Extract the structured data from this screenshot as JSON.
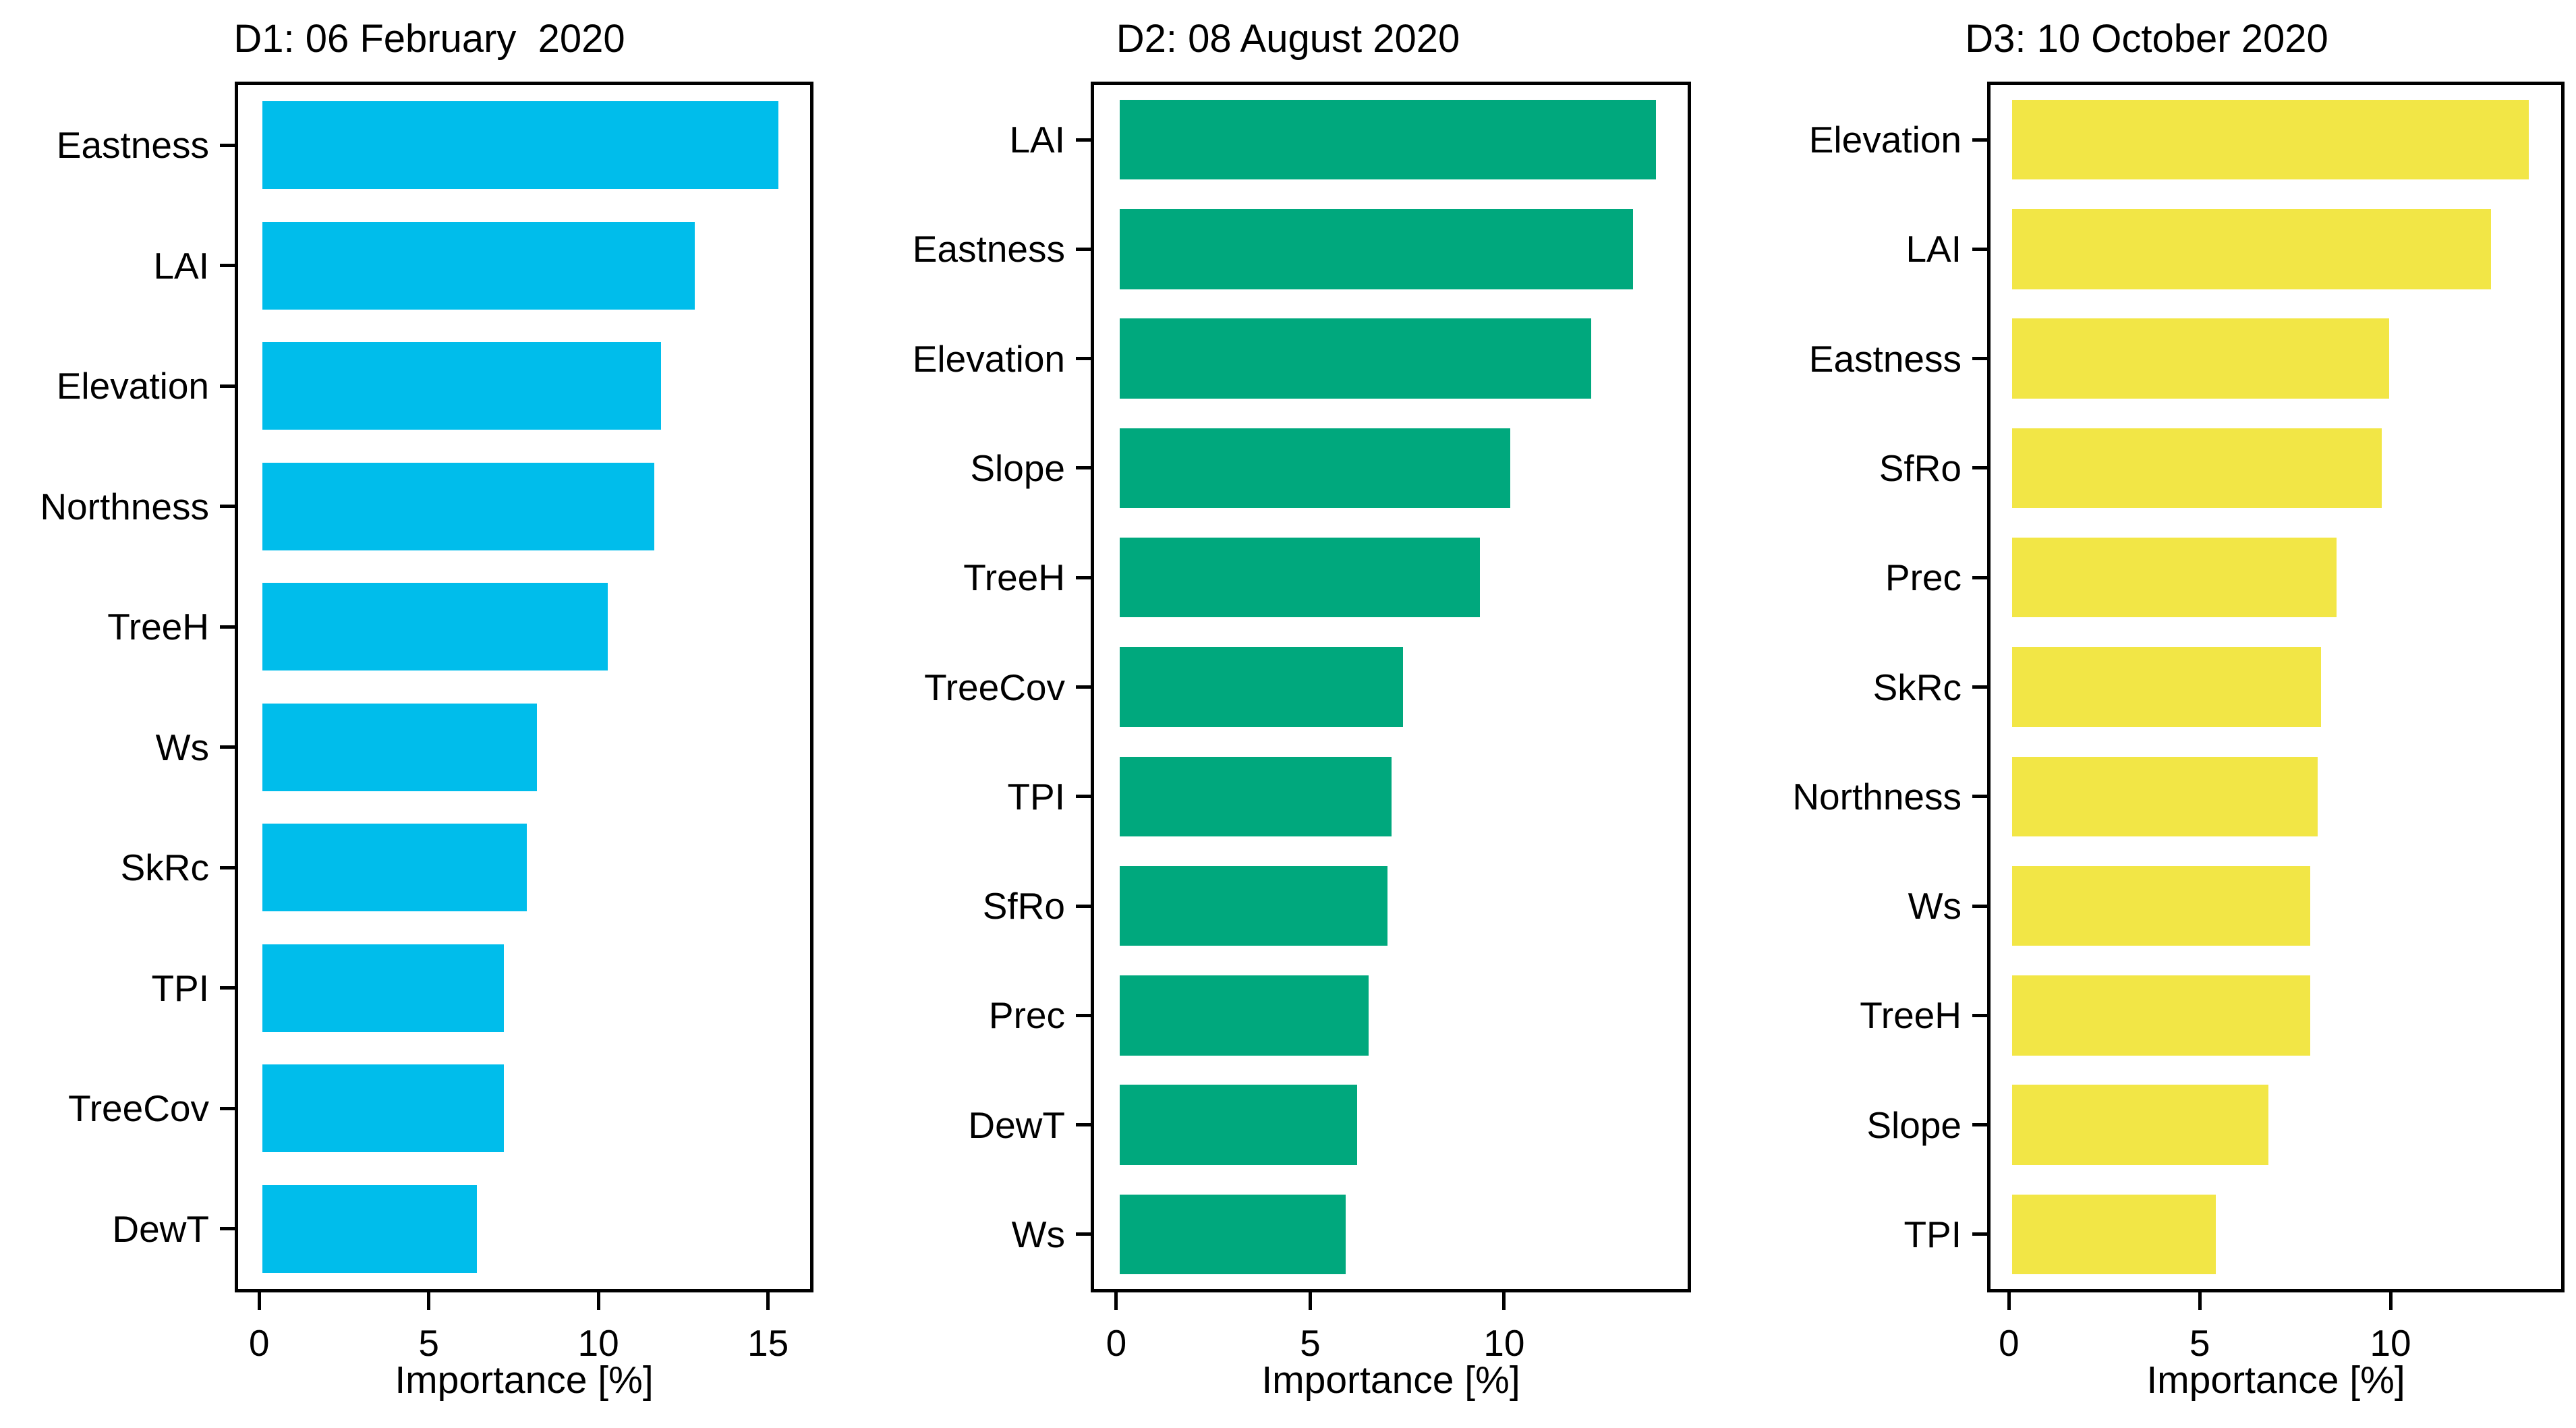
{
  "figure": {
    "background": "#ffffff",
    "text_color": "#000000"
  },
  "chart_data": [
    {
      "type": "bar",
      "orientation": "horizontal",
      "title": "D1: 06 February  2020",
      "xlabel": "Importance [%]",
      "bar_color": "#00BDEB",
      "categories": [
        "Eastness",
        "LAI",
        "Elevation",
        "Northness",
        "TreeH",
        "Ws",
        "SkRc",
        "TPI",
        "TreeCov",
        "DewT"
      ],
      "values": [
        15.4,
        12.9,
        11.9,
        11.7,
        10.3,
        8.2,
        7.9,
        7.2,
        7.2,
        6.4
      ],
      "xticks": [
        0,
        5,
        10,
        15
      ],
      "xlim": [
        -0.72,
        16.34
      ],
      "grid": false,
      "legend": null
    },
    {
      "type": "bar",
      "orientation": "horizontal",
      "title": "D2: 08 August 2020",
      "xlabel": "Importance [%]",
      "bar_color": "#00A87D",
      "categories": [
        "LAI",
        "Eastness",
        "Elevation",
        "Slope",
        "TreeH",
        "TreeCov",
        "TPI",
        "SfRo",
        "Prec",
        "DewT",
        "Ws"
      ],
      "values": [
        14.0,
        13.4,
        12.3,
        10.2,
        9.4,
        7.4,
        7.1,
        7.0,
        6.5,
        6.2,
        5.9
      ],
      "xticks": [
        0,
        5,
        10
      ],
      "xlim": [
        -0.66,
        14.82
      ],
      "grid": false,
      "legend": null
    },
    {
      "type": "bar",
      "orientation": "horizontal",
      "title": "D3: 10 October 2020",
      "xlabel": "Importance [%]",
      "bar_color": "#F2E646",
      "categories": [
        "Elevation",
        "LAI",
        "Eastness",
        "SfRo",
        "Prec",
        "SkRc",
        "Northness",
        "Ws",
        "TreeH",
        "Slope",
        "TPI"
      ],
      "values": [
        13.7,
        12.7,
        10.0,
        9.8,
        8.6,
        8.2,
        8.1,
        7.9,
        7.9,
        6.8,
        5.4
      ],
      "xticks": [
        0,
        5,
        10
      ],
      "xlim": [
        -0.57,
        14.56
      ],
      "grid": false,
      "legend": null
    }
  ]
}
